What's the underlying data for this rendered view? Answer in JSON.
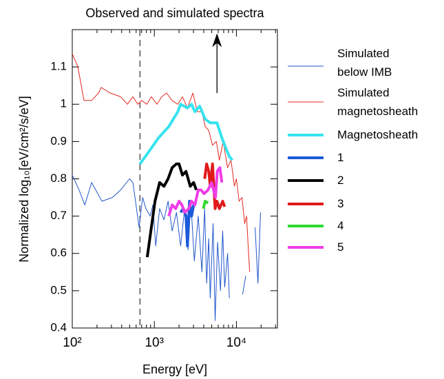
{
  "chart_data": {
    "type": "line",
    "title": "Observed and simulated spectra",
    "x_label": "Energy [eV]",
    "y_label": "Normalized log₁₀[eV/cm²/s/eV]",
    "x_scale": "log",
    "xlim": [
      100,
      31600
    ],
    "ylim": [
      0.4,
      1.2
    ],
    "xticks": [
      {
        "value": 100,
        "label": "10²"
      },
      {
        "value": 1000,
        "label": "10³"
      },
      {
        "value": 10000,
        "label": "10⁴"
      }
    ],
    "yticks": [
      0.4,
      0.5,
      0.6,
      0.7,
      0.8,
      0.9,
      1,
      1.1
    ],
    "vline_x": 667,
    "arrow": {
      "x": 5800,
      "y_from": 1.03,
      "y_to": 1.19
    },
    "series": [
      {
        "name": "Simulated\nbelow IMB",
        "color": "#2156cc",
        "width": 1,
        "x": [
          100,
          121,
          142,
          172,
          230,
          307,
          388,
          498,
          548,
          653,
          720,
          790,
          890,
          960,
          1040,
          1160,
          1310,
          1470,
          1650,
          1860,
          2090,
          2340,
          2580,
          2780,
          3070,
          3430,
          3800,
          4100,
          4340,
          4600,
          4800,
          5200,
          5500,
          5900,
          6400,
          6800,
          7200,
          7800,
          8200,
          9000,
          11900,
          13000,
          15000,
          16900,
          18300,
          19700
        ],
        "values": [
          0.81,
          0.77,
          0.73,
          0.79,
          0.74,
          0.75,
          0.77,
          0.8,
          0.79,
          0.67,
          0.75,
          0.72,
          0.7,
          0.73,
          0.62,
          0.72,
          0.69,
          0.74,
          0.66,
          0.71,
          0.62,
          0.72,
          0.61,
          0.74,
          0.58,
          0.7,
          0.55,
          0.72,
          0.52,
          0.64,
          0.48,
          0.68,
          0.42,
          0.63,
          0.5,
          0.66,
          0.51,
          0.6,
          0.48,
          null,
          0.49,
          0.54,
          null,
          0.67,
          0.52,
          0.71
        ]
      },
      {
        "name": "Simulated\nmagnetosheath",
        "color": "#e3281f",
        "width": 1,
        "x": [
          100,
          117,
          139,
          172,
          209,
          225,
          290,
          388,
          470,
          548,
          630,
          700,
          810,
          920,
          1080,
          1230,
          1410,
          1650,
          1930,
          2200,
          2530,
          2950,
          3330,
          3800,
          4170,
          4600,
          5110,
          5700,
          6200,
          6900,
          7800,
          8600,
          9450,
          10000,
          10800,
          11700,
          12600,
          13300,
          13900,
          14500
        ],
        "values": [
          1.135,
          1.1,
          1.01,
          1.01,
          1.03,
          1.045,
          1.03,
          1.02,
          1.0,
          1.02,
          1.0,
          1.01,
          1.0,
          1.02,
          1.0,
          1.02,
          1.03,
          1.01,
          1.0,
          1.02,
          0.99,
          1.03,
          0.98,
          0.98,
          0.94,
          0.93,
          0.89,
          0.9,
          0.85,
          0.9,
          0.83,
          0.85,
          0.78,
          0.8,
          0.74,
          0.75,
          0.68,
          0.7,
          0.62,
          0.55
        ]
      },
      {
        "name": "Magnetosheath",
        "color": "#35e3ee",
        "width": 4,
        "x": [
          667,
          840,
          1125,
          1500,
          1930,
          2090,
          2530,
          2840,
          3120,
          3570,
          4170,
          4800,
          5800,
          6650,
          7500,
          8200,
          8900
        ],
        "values": [
          0.84,
          0.87,
          0.91,
          0.94,
          0.98,
          1.0,
          0.99,
          1.0,
          0.98,
          0.995,
          0.96,
          0.95,
          0.95,
          0.91,
          0.88,
          0.86,
          0.85
        ]
      },
      {
        "name": "1",
        "color": "#1a5adb",
        "width": 4,
        "x": [
          2090,
          2250,
          2430,
          2530,
          2680,
          2840,
          3010
        ],
        "values": [
          0.71,
          0.72,
          0.7,
          0.62,
          0.74,
          0.7,
          0.73
        ]
      },
      {
        "name": "2",
        "color": "#000000",
        "width": 4,
        "x": [
          820,
          920,
          1020,
          1160,
          1310,
          1470,
          1650,
          1860,
          2000,
          2200,
          2430,
          2740,
          3010,
          3250
        ],
        "values": [
          0.59,
          0.67,
          0.74,
          0.79,
          0.78,
          0.8,
          0.83,
          0.84,
          0.84,
          0.81,
          0.82,
          0.78,
          0.79,
          0.77
        ]
      },
      {
        "name": "3",
        "color": "#e01a1a",
        "width": 4,
        "x": [
          4100,
          4340,
          4600,
          4800,
          5110,
          5500,
          5800,
          6200,
          6800,
          7200
        ],
        "values": [
          0.8,
          0.84,
          0.82,
          0.78,
          0.84,
          0.72,
          0.74,
          0.72,
          0.74,
          0.725
        ]
      },
      {
        "name": "4",
        "color": "#2fd92f",
        "width": 4,
        "x": [
          3950,
          4170,
          4510
        ],
        "values": [
          0.72,
          0.74,
          0.735
        ]
      },
      {
        "name": "5",
        "color": "#ee3de8",
        "width": 4,
        "x": [
          1500,
          1650,
          1820,
          2000,
          2170,
          2340,
          2630,
          2840,
          3120,
          3430,
          3720,
          4030,
          4510,
          4990,
          5260,
          5560,
          5840,
          6290,
          6650
        ],
        "values": [
          0.7,
          0.73,
          0.72,
          0.74,
          0.73,
          0.71,
          0.72,
          0.74,
          0.73,
          0.77,
          0.77,
          0.76,
          0.77,
          0.79,
          0.77,
          0.75,
          0.82,
          0.83,
          0.79
        ]
      }
    ]
  }
}
